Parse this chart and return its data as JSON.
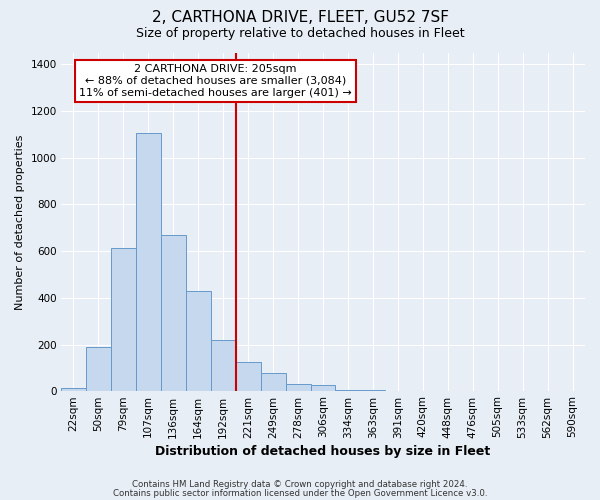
{
  "title_line1": "2, CARTHONA DRIVE, FLEET, GU52 7SF",
  "title_line2": "Size of property relative to detached houses in Fleet",
  "xlabel": "Distribution of detached houses by size in Fleet",
  "ylabel": "Number of detached properties",
  "bar_labels": [
    "22sqm",
    "50sqm",
    "79sqm",
    "107sqm",
    "136sqm",
    "164sqm",
    "192sqm",
    "221sqm",
    "249sqm",
    "278sqm",
    "306sqm",
    "334sqm",
    "363sqm",
    "391sqm",
    "420sqm",
    "448sqm",
    "476sqm",
    "505sqm",
    "533sqm",
    "562sqm",
    "590sqm"
  ],
  "bar_values": [
    15,
    190,
    615,
    1105,
    670,
    430,
    220,
    125,
    80,
    30,
    25,
    5,
    5,
    0,
    0,
    0,
    0,
    0,
    0,
    0,
    0
  ],
  "bar_color": "#c5d8ee",
  "bar_edge_color": "#6699cc",
  "red_line_x": 7,
  "annotation_title": "2 CARTHONA DRIVE: 205sqm",
  "annotation_line1": "← 88% of detached houses are smaller (3,084)",
  "annotation_line2": "11% of semi-detached houses are larger (401) →",
  "annotation_box_color": "#ffffff",
  "annotation_box_edge": "#cc0000",
  "ylim": [
    0,
    1450
  ],
  "yticks": [
    0,
    200,
    400,
    600,
    800,
    1000,
    1200,
    1400
  ],
  "footer_line1": "Contains HM Land Registry data © Crown copyright and database right 2024.",
  "footer_line2": "Contains public sector information licensed under the Open Government Licence v3.0.",
  "bg_color": "#e8eef6",
  "plot_bg_color": "#e8eef6",
  "grid_color": "#ffffff",
  "title1_fontsize": 11,
  "title2_fontsize": 9,
  "xlabel_fontsize": 9,
  "ylabel_fontsize": 8,
  "tick_fontsize": 7.5,
  "annotation_fontsize": 8
}
